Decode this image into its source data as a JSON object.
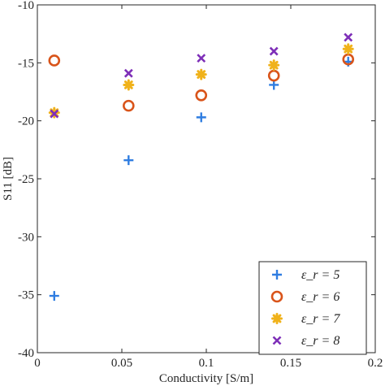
{
  "chart_data": {
    "type": "scatter",
    "xlabel": "Conductivity [S/m]",
    "ylabel": "S11 [dB]",
    "xlim": [
      0,
      0.2
    ],
    "ylim": [
      -40,
      -10
    ],
    "x_ticks": [
      "0",
      "0.05",
      "0.1",
      "0.15",
      "0.2"
    ],
    "y_ticks": [
      "-10",
      "-15",
      "-20",
      "-25",
      "-30",
      "-35",
      "-40"
    ],
    "grid": false,
    "legend_position": "bottom-right",
    "x": [
      0.01,
      0.054,
      0.097,
      0.14,
      0.184
    ],
    "series": [
      {
        "name": "ε_r = 5",
        "marker": "plus",
        "color": "#2f7de1",
        "values": [
          -35.1,
          -23.4,
          -19.7,
          -16.9,
          -14.9
        ]
      },
      {
        "name": "ε_r = 6",
        "marker": "circle",
        "color": "#d9541a",
        "values": [
          -14.8,
          -18.7,
          -17.8,
          -16.1,
          -14.7
        ]
      },
      {
        "name": "ε_r = 7",
        "marker": "star",
        "color": "#f0b21a",
        "values": [
          -19.3,
          -16.9,
          -16.0,
          -15.2,
          -13.8
        ]
      },
      {
        "name": "ε_r = 8",
        "marker": "x",
        "color": "#7e2fb8",
        "values": [
          -19.4,
          -15.9,
          -14.6,
          -14.0,
          -12.8
        ]
      }
    ]
  }
}
